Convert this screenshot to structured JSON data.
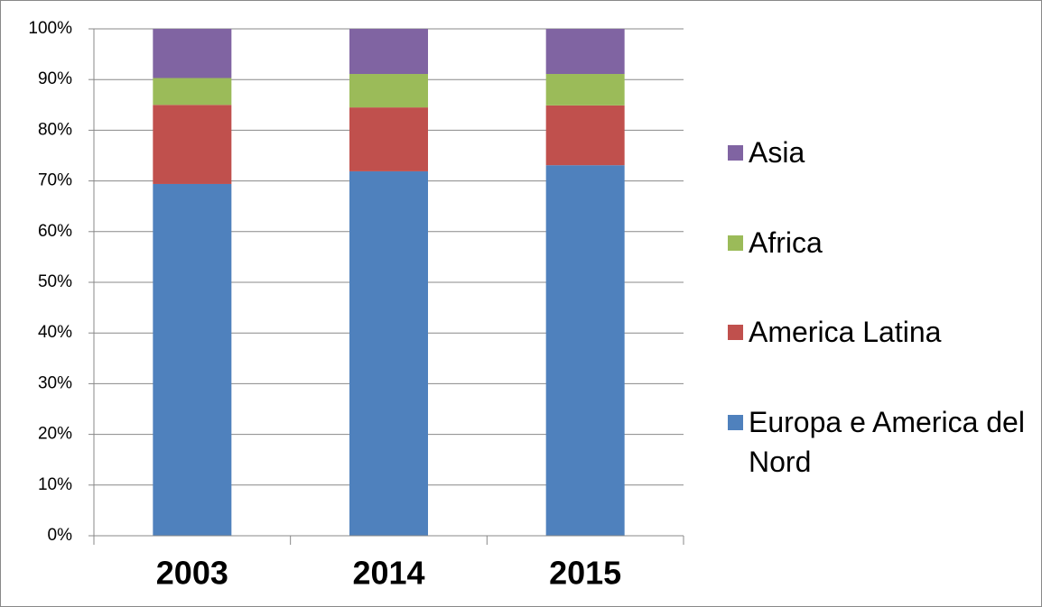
{
  "chart_data": {
    "type": "stacked_bar",
    "categories": [
      "2003",
      "2014",
      "2015"
    ],
    "series": [
      {
        "name": "Europa e America del Nord",
        "color": "#4f81bd",
        "values": [
          69.4,
          71.9,
          73.1
        ]
      },
      {
        "name": "America Latina",
        "color": "#c0504d",
        "values": [
          15.6,
          12.6,
          11.8
        ]
      },
      {
        "name": "Africa",
        "color": "#9bbb59",
        "values": [
          5.3,
          6.6,
          6.2
        ]
      },
      {
        "name": "Asia",
        "color": "#8064a2",
        "values": [
          9.7,
          8.9,
          8.9
        ]
      }
    ],
    "ylim": [
      0,
      100
    ],
    "yticks": [
      {
        "value": 0,
        "label": "0%"
      },
      {
        "value": 10,
        "label": "10%"
      },
      {
        "value": 20,
        "label": "20%"
      },
      {
        "value": 30,
        "label": "30%"
      },
      {
        "value": 40,
        "label": "40%"
      },
      {
        "value": 50,
        "label": "50%"
      },
      {
        "value": 60,
        "label": "60%"
      },
      {
        "value": 70,
        "label": "70%"
      },
      {
        "value": 80,
        "label": "80%"
      },
      {
        "value": 90,
        "label": "90%"
      },
      {
        "value": 100,
        "label": "100%"
      }
    ],
    "grid": true,
    "legend": "right"
  }
}
